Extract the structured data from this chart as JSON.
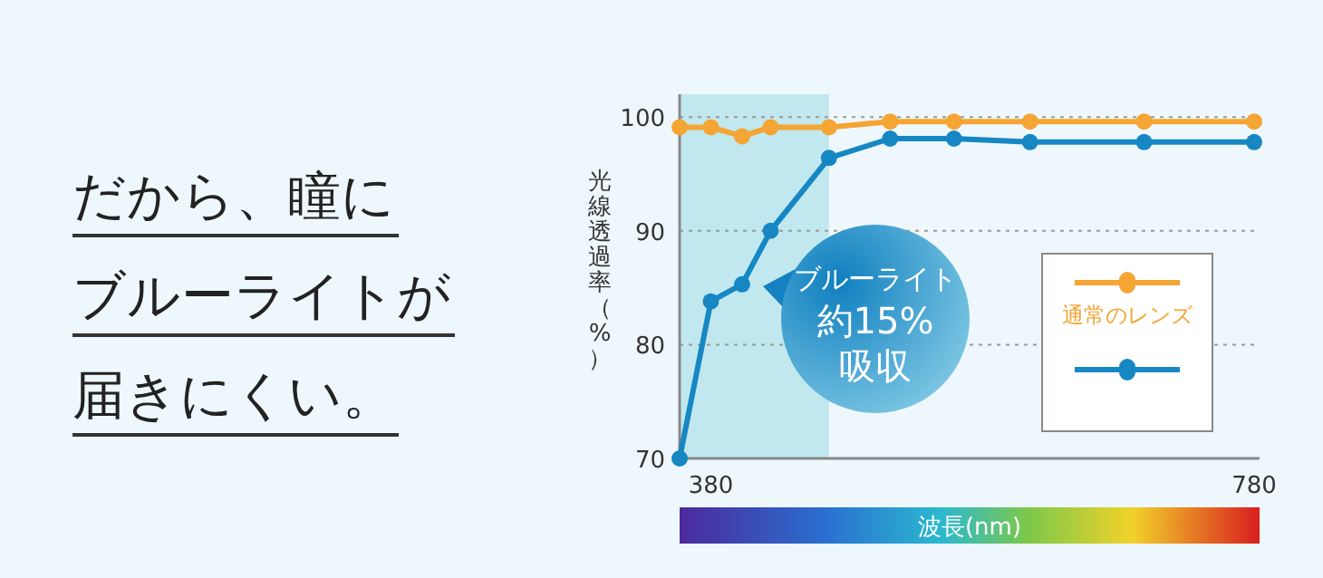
{
  "chart_data": {
    "type": "line",
    "xlabel": "波長(nm)",
    "ylabel": "光線透過率（%）",
    "x": [
      357,
      380,
      403,
      424,
      467,
      512,
      559,
      615,
      699,
      780
    ],
    "series": [
      {
        "name": "通常のレンズ",
        "color": "#f5a533",
        "values": [
          99.1,
          99.1,
          98.3,
          99.1,
          99.1,
          99.6,
          99.6,
          99.6,
          99.6,
          99.6
        ]
      },
      {
        "name": null,
        "color": "#1787c4",
        "values": [
          70,
          83.8,
          85.3,
          90,
          96.4,
          98.1,
          98.1,
          97.8,
          97.8,
          97.8
        ]
      }
    ],
    "xlim": [
      357,
      784
    ],
    "ylim": [
      70,
      102
    ],
    "xticks": [
      380,
      780
    ],
    "yticks": [
      70,
      80,
      90,
      100
    ],
    "bands": [
      {
        "axis": "x",
        "from": 357,
        "to": 467,
        "color": "#b5e3ea"
      }
    ],
    "annotations": [
      "だから、瞳に",
      "ブルーライトが",
      "届きにくい。",
      "ブルーライト",
      "約15%",
      "吸収"
    ],
    "grid": "y",
    "legend": "right",
    "marker": "circle",
    "line_style": "solid"
  }
}
